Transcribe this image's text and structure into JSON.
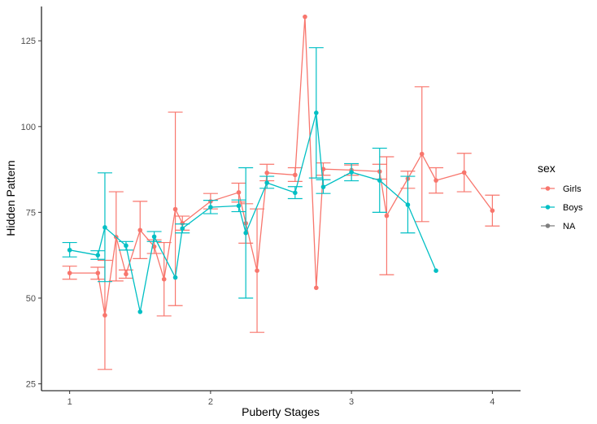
{
  "chart_data": {
    "type": "line",
    "xlabel": "Puberty Stages",
    "ylabel": "Hidden Pattern",
    "xlim": [
      0.8,
      4.2
    ],
    "ylim": [
      23,
      135
    ],
    "x_ticks": [
      1,
      2,
      3,
      4
    ],
    "x_tick_labels": [
      "1",
      "2",
      "3",
      "4"
    ],
    "y_ticks": [
      25,
      50,
      75,
      100,
      125
    ],
    "y_tick_labels": [
      "25",
      "50",
      "75",
      "100",
      "125"
    ],
    "grid": false,
    "legend": {
      "title": "sex",
      "position": "right",
      "entries": [
        "Girls",
        "Boys",
        "NA"
      ]
    },
    "series": [
      {
        "name": "Girls",
        "color": "#F8766D",
        "points": [
          {
            "x": 1.0,
            "y": 57.3,
            "ymin": 55.5,
            "ymax": 59.3
          },
          {
            "x": 1.2,
            "y": 57.3,
            "ymin": 55.5,
            "ymax": 59.0
          },
          {
            "x": 1.25,
            "y": 45.0,
            "ymin": 29.2,
            "ymax": 61.0
          },
          {
            "x": 1.33,
            "y": 67.8,
            "ymin": 55.0,
            "ymax": 81.0
          },
          {
            "x": 1.4,
            "y": 57.0,
            "ymin": 55.8,
            "ymax": 58.2
          },
          {
            "x": 1.5,
            "y": 69.8,
            "ymin": 61.5,
            "ymax": 78.2
          },
          {
            "x": 1.6,
            "y": 65.0,
            "ymin": 63.0,
            "ymax": 67.0
          },
          {
            "x": 1.67,
            "y": 55.5,
            "ymin": 44.8,
            "ymax": 66.2
          },
          {
            "x": 1.75,
            "y": 75.9,
            "ymin": 47.8,
            "ymax": 104.2
          },
          {
            "x": 1.8,
            "y": 71.8,
            "ymin": 69.8,
            "ymax": 73.9
          },
          {
            "x": 2.0,
            "y": 78.2,
            "ymin": 76.0,
            "ymax": 80.5
          },
          {
            "x": 2.2,
            "y": 80.8,
            "ymin": 78.0,
            "ymax": 83.5
          },
          {
            "x": 2.25,
            "y": 71.8,
            "ymin": 66.0,
            "ymax": 77.5
          },
          {
            "x": 2.33,
            "y": 58.0,
            "ymin": 40.0,
            "ymax": 76.0
          },
          {
            "x": 2.4,
            "y": 86.5,
            "ymin": 84.2,
            "ymax": 89.0
          },
          {
            "x": 2.6,
            "y": 85.9,
            "ymin": 84.0,
            "ymax": 88.0
          },
          {
            "x": 2.67,
            "y": 132.0,
            "ymin": null,
            "ymax": null
          },
          {
            "x": 2.75,
            "y": 53.0,
            "ymin": null,
            "ymax": null
          },
          {
            "x": 2.8,
            "y": 87.6,
            "ymin": 85.8,
            "ymax": 89.4
          },
          {
            "x": 3.0,
            "y": 87.3,
            "ymin": 85.8,
            "ymax": 88.8
          },
          {
            "x": 3.2,
            "y": 86.9,
            "ymin": 84.7,
            "ymax": 89.0
          },
          {
            "x": 3.25,
            "y": 74.0,
            "ymin": 56.8,
            "ymax": 91.2
          },
          {
            "x": 3.4,
            "y": 84.8,
            "ymin": 82.0,
            "ymax": 87.0
          },
          {
            "x": 3.5,
            "y": 92.0,
            "ymin": 72.3,
            "ymax": 111.6
          },
          {
            "x": 3.6,
            "y": 84.3,
            "ymin": 80.6,
            "ymax": 88.0
          },
          {
            "x": 3.8,
            "y": 86.6,
            "ymin": 81.0,
            "ymax": 92.2
          },
          {
            "x": 4.0,
            "y": 75.5,
            "ymin": 71.0,
            "ymax": 80.0
          }
        ]
      },
      {
        "name": "Boys",
        "color": "#00BFC4",
        "points": [
          {
            "x": 1.0,
            "y": 64.0,
            "ymin": 62.0,
            "ymax": 66.2
          },
          {
            "x": 1.2,
            "y": 62.5,
            "ymin": 61.3,
            "ymax": 63.8
          },
          {
            "x": 1.25,
            "y": 70.6,
            "ymin": 54.8,
            "ymax": 86.5
          },
          {
            "x": 1.4,
            "y": 65.3,
            "ymin": 64.0,
            "ymax": 66.5
          },
          {
            "x": 1.5,
            "y": 46.0,
            "ymin": null,
            "ymax": null
          },
          {
            "x": 1.6,
            "y": 67.9,
            "ymin": 66.5,
            "ymax": 69.4
          },
          {
            "x": 1.75,
            "y": 56.0,
            "ymin": null,
            "ymax": null
          },
          {
            "x": 1.8,
            "y": 70.3,
            "ymin": 69.0,
            "ymax": 71.6
          },
          {
            "x": 2.0,
            "y": 76.5,
            "ymin": 74.6,
            "ymax": 78.5
          },
          {
            "x": 2.2,
            "y": 76.9,
            "ymin": 75.2,
            "ymax": 78.6
          },
          {
            "x": 2.25,
            "y": 69.0,
            "ymin": 50.0,
            "ymax": 88.0
          },
          {
            "x": 2.4,
            "y": 83.6,
            "ymin": 82.0,
            "ymax": 85.5
          },
          {
            "x": 2.6,
            "y": 80.7,
            "ymin": 79.0,
            "ymax": 82.5
          },
          {
            "x": 2.75,
            "y": 104.0,
            "ymin": 85.0,
            "ymax": 123.0
          },
          {
            "x": 2.8,
            "y": 82.4,
            "ymin": 80.5,
            "ymax": 84.5
          },
          {
            "x": 3.0,
            "y": 86.7,
            "ymin": 84.2,
            "ymax": 89.2
          },
          {
            "x": 3.2,
            "y": 84.3,
            "ymin": 75.0,
            "ymax": 93.7
          },
          {
            "x": 3.4,
            "y": 77.2,
            "ymin": 69.0,
            "ymax": 85.5
          },
          {
            "x": 3.6,
            "y": 58.0,
            "ymin": null,
            "ymax": null
          }
        ]
      }
    ],
    "legend_na_color": "#7F7F7F"
  }
}
